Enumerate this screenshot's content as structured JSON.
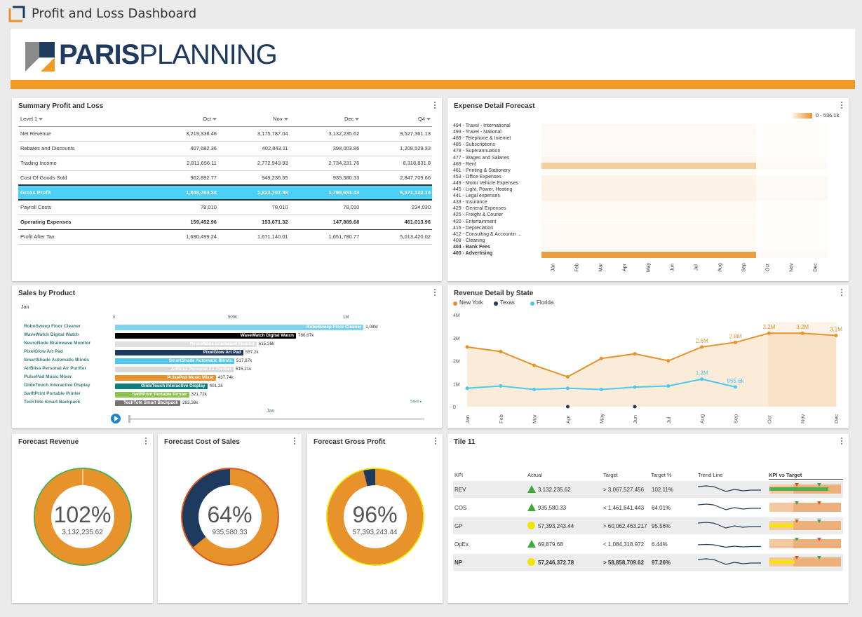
{
  "app": {
    "title": "Profit and Loss Dashboard"
  },
  "logo": {
    "bold": "PARIS",
    "light": "PLANNING"
  },
  "colors": {
    "orange": "#e8922c",
    "navy": "#1f3a5f",
    "cyan": "#4dd0f5",
    "green": "#4caf50",
    "yellow": "#f2e600"
  },
  "summary": {
    "title": "Summary Profit and Loss",
    "headers": [
      "Level 1",
      "Oct",
      "Nov",
      "Dec",
      "Q4"
    ],
    "rows": [
      {
        "label": "Net Revenue",
        "vals": [
          "3,219,338.46",
          "3,175,787.04",
          "3,132,235.62",
          "9,527,361.13"
        ]
      },
      {
        "label": "Rebates and Discounts",
        "vals": [
          "407,682.36",
          "402,843.11",
          "398,003.86",
          "1,208,529.33"
        ]
      },
      {
        "label": "Trading Income",
        "vals": [
          "2,811,656.11",
          "2,772,943.93",
          "2,734,231.76",
          "8,318,831.8"
        ]
      },
      {
        "label": "Cost Of Goods Sold",
        "vals": [
          "962,892.77",
          "949,236.55",
          "935,580.33",
          "2,847,709.66"
        ]
      },
      {
        "label": "Gross Profit",
        "vals": [
          "1,848,763.34",
          "1,823,707.38",
          "1,798,651.43",
          "5,471,122.14"
        ]
      },
      {
        "label": "Payroll Costs",
        "vals": [
          "78,010",
          "78,010",
          "78,010",
          "234,030"
        ]
      },
      {
        "label": "Operating Expenses",
        "vals": [
          "159,452.96",
          "153,671.32",
          "147,889.68",
          "461,013.96"
        ]
      },
      {
        "label": "Profit After Tax",
        "vals": [
          "1,690,499.24",
          "1,671,140.01",
          "1,651,780.77",
          "5,013,420.02"
        ]
      }
    ]
  },
  "expense": {
    "title": "Expense Detail Forecast",
    "legend": "0 - 536.1k",
    "rows": [
      "494 - Travel - International",
      "493 - Travel - National",
      "489 - Telephone & Internet",
      "485 - Subscriptions",
      "478 - Superannuation",
      "477 - Wages and Salaries",
      "469 - Rent",
      "461 - Printing & Stationery",
      "453 - Office Expenses",
      "449 - Motor Vehicle Expenses",
      "445 - Light, Power, Heating",
      "441 - Legal expenses",
      "433 - Insurance",
      "429 - General Expenses",
      "425 - Freight & Courier",
      "420 - Entertainment",
      "416 - Depreciation",
      "412 - Consulting & Accountin ...",
      "408 - Cleaning",
      "404 - Bank Fees",
      "400 - Advertising"
    ],
    "months": [
      "Jan",
      "Feb",
      "Mar",
      "Apr",
      "May",
      "Jun",
      "Jul",
      "Aug",
      "Sep",
      "Oct",
      "Nov",
      "Dec"
    ],
    "intensity": [
      0.05,
      0.05,
      0.04,
      0.04,
      0.04,
      0.08,
      0.45,
      0.03,
      0.1,
      0.12,
      0.12,
      0.12,
      0.06,
      0.04,
      0.06,
      0.04,
      0.05,
      0.06,
      0.04,
      0.05,
      0.9
    ]
  },
  "sales": {
    "title": "Sales by Product",
    "period": "Jan",
    "axis": [
      "0",
      "500k",
      "1M"
    ],
    "footer_label": "Jan",
    "sales_link": "Sales ▸",
    "items": [
      {
        "name": "RoboSweep Floor Cleaner",
        "value": 1080000,
        "display": "1,08M",
        "color": "#7fd3ea"
      },
      {
        "name": "WaveWatch Digital Watch",
        "value": 786670,
        "display": "786,67k",
        "color": "#000000"
      },
      {
        "name": "NeuroNode Brainwave Monitor",
        "value": 615260,
        "display": "615,26k",
        "color": "#e0e0e0"
      },
      {
        "name": "PixelGlow Art Pad",
        "value": 557200,
        "display": "557,2k",
        "color": "#1f3a5f"
      },
      {
        "name": "SmartShade Automatic Blinds",
        "value": 517870,
        "display": "517,87k",
        "color": "#4dc8ee"
      },
      {
        "name": "AirBliss Personal Air Purifier",
        "value": 515210,
        "display": "515,21k",
        "color": "#d9d9d9"
      },
      {
        "name": "PulsePad Music Mixer",
        "value": 437740,
        "display": "437,74k",
        "color": "#e8922c"
      },
      {
        "name": "GlideTouch Interactive Display",
        "value": 401200,
        "display": "401,2k",
        "color": "#0f7d7d"
      },
      {
        "name": "SwiftPrint Portable Printer",
        "value": 321720,
        "display": "321,72k",
        "color": "#8bc34a"
      },
      {
        "name": "TechTote Smart Backpack",
        "value": 283380,
        "display": "283,38k",
        "color": "#757575"
      }
    ]
  },
  "revenue": {
    "title": "Revenue Detail by State",
    "legend": [
      "New York",
      "Texas",
      "Florida"
    ],
    "yticks": [
      "4M",
      "3M",
      "2M",
      "1M",
      "0"
    ]
  },
  "chart_data": {
    "type": "line",
    "title": "Revenue Detail by State",
    "x": [
      "Jan",
      "Feb",
      "Mar",
      "Apr",
      "May",
      "Jun",
      "Jul",
      "Aug",
      "Sep",
      "Oct",
      "Nov",
      "Dec"
    ],
    "ylim": [
      0,
      4000000
    ],
    "series": [
      {
        "name": "New York",
        "values": [
          2600000,
          2400000,
          1800000,
          1300000,
          2100000,
          2300000,
          2000000,
          2600000,
          2800000,
          3200000,
          3200000,
          3100000
        ],
        "color": "#e8922c"
      },
      {
        "name": "Texas",
        "values": [
          null,
          null,
          null,
          0,
          null,
          0,
          null,
          null,
          null,
          null,
          null,
          null
        ],
        "color": "#1f3a5f"
      },
      {
        "name": "Florida",
        "values": [
          800000,
          900000,
          750000,
          800000,
          750000,
          850000,
          900000,
          1200000,
          855600,
          null,
          null,
          null
        ],
        "color": "#4dc8ee"
      }
    ],
    "labels": [
      {
        "series": 0,
        "index": 7,
        "text": "2.6M"
      },
      {
        "series": 0,
        "index": 8,
        "text": "2.8M"
      },
      {
        "series": 0,
        "index": 9,
        "text": "3.2M"
      },
      {
        "series": 0,
        "index": 10,
        "text": "3.2M"
      },
      {
        "series": 0,
        "index": 11,
        "text": "3.1M"
      },
      {
        "series": 2,
        "index": 7,
        "text": "1.2M"
      },
      {
        "series": 2,
        "index": 8,
        "text": "855.6k"
      }
    ]
  },
  "donuts": [
    {
      "title": "Forecast Revenue",
      "pct": "102%",
      "value": "3,132,235.62",
      "fraction": 1.02,
      "ring": "#e8922c",
      "rest": "#e8922c",
      "border": "#4caf50"
    },
    {
      "title": "Forecast Cost of Sales",
      "pct": "64%",
      "value": "935,580.33",
      "fraction": 0.64,
      "ring": "#e8922c",
      "rest": "#1f3a5f",
      "border": "#e05a1f"
    },
    {
      "title": "Forecast Gross Profit",
      "pct": "96%",
      "value": "57,393,243.44",
      "fraction": 0.96,
      "ring": "#e8922c",
      "rest": "#1f3a5f",
      "border": "#f2e600"
    }
  ],
  "kpi": {
    "title": "Tile 11",
    "headers": [
      "KPI",
      "Actual",
      "Target",
      "Target %",
      "Trend Line",
      "KPI vs Target"
    ],
    "rows": [
      {
        "kpi": "REV",
        "status": "up",
        "actual": "3,132,235.62",
        "target": "> 3,067,527.456",
        "pct": "102.11%",
        "shade": true
      },
      {
        "kpi": "COS",
        "status": "up",
        "actual": "935,580.33",
        "target": "< 1,461,641.443",
        "pct": "64.01%",
        "shade": false
      },
      {
        "kpi": "GP",
        "status": "warn",
        "actual": "57,393,243.44",
        "target": "> 60,062,463.217",
        "pct": "95.56%",
        "shade": true
      },
      {
        "kpi": "OpEx",
        "status": "up",
        "actual": "69,879.68",
        "target": "< 1,084,318.972",
        "pct": "6.44%",
        "shade": false
      },
      {
        "kpi": "NP",
        "status": "warn",
        "actual": "57,246,372.78",
        "target": "> 58,858,709.62",
        "pct": "97.26%",
        "shade": true,
        "bold": true
      }
    ]
  }
}
